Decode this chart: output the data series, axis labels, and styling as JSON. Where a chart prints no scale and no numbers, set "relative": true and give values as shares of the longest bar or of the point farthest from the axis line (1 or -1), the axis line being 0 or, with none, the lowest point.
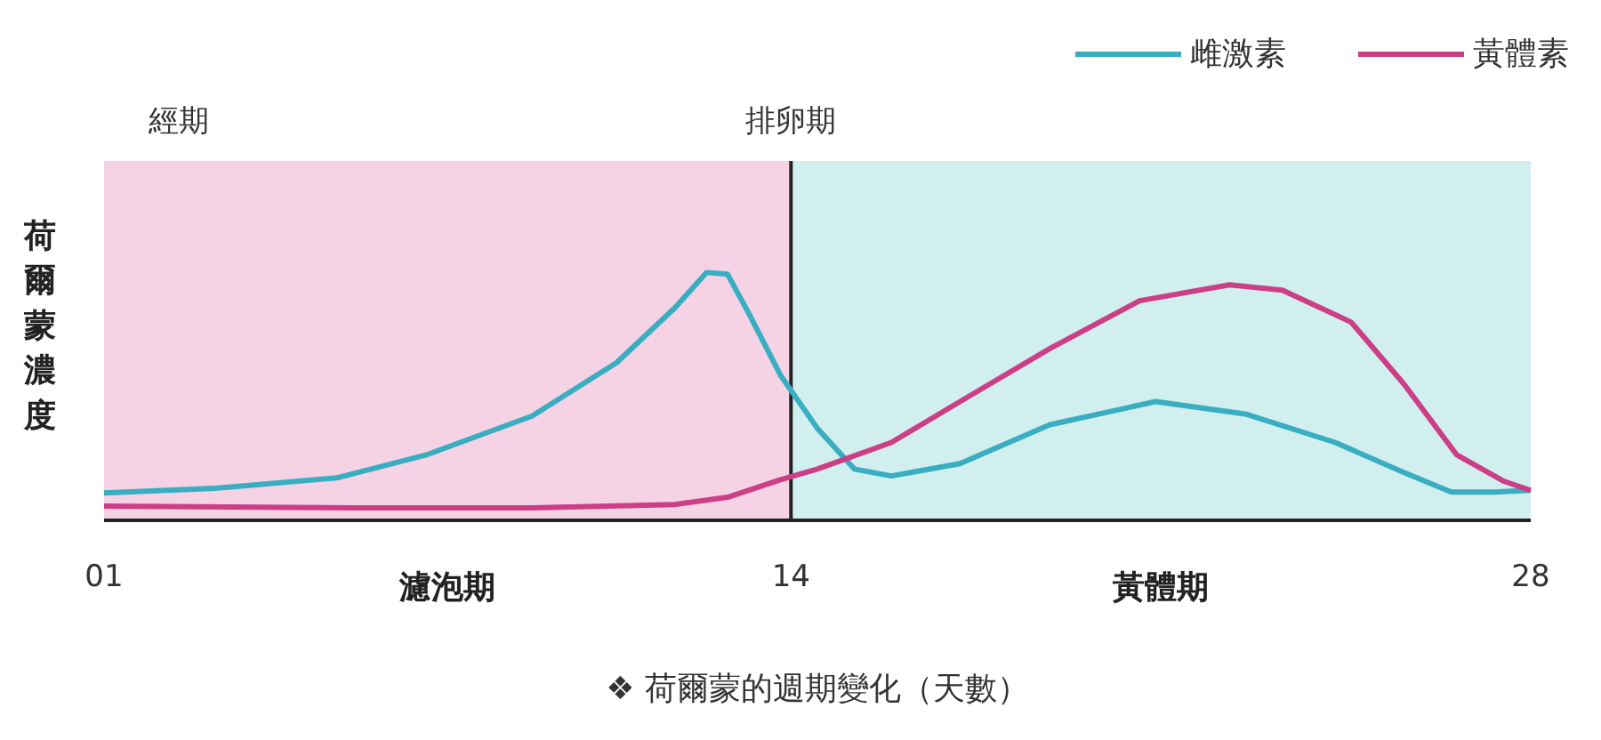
{
  "chart_data": {
    "type": "line",
    "relative": true,
    "ylabel": "荷爾蒙濃度",
    "xlim": [
      1,
      28
    ],
    "xticks": [
      {
        "value": 1,
        "label": "01"
      },
      14,
      28
    ],
    "series": [
      {
        "name": "雌激素",
        "color": "#38aec0",
        "x": [
          1,
          3.1,
          5.4,
          7.1,
          9.1,
          10.7,
          11.8,
          12.4,
          12.8,
          13.2,
          13.8,
          14.5,
          15.2,
          15.9,
          17.2,
          18.9,
          20.9,
          22.6,
          24.3,
          25.6,
          26.5,
          27.3,
          28
        ],
        "values": [
          0.11,
          0.129,
          0.171,
          0.264,
          0.421,
          0.636,
          0.857,
          1,
          0.993,
          0.836,
          0.586,
          0.371,
          0.207,
          0.179,
          0.229,
          0.386,
          0.479,
          0.429,
          0.314,
          0.193,
          0.114,
          0.114,
          0.121
        ]
      },
      {
        "name": "黃體素",
        "color": "#cc3f86",
        "x": [
          1,
          5.8,
          9.1,
          11.8,
          12.8,
          13.8,
          14.5,
          15.9,
          17.2,
          18.9,
          20.6,
          22.3,
          23.3,
          24.6,
          25.6,
          26.6,
          27.5,
          28
        ],
        "values": [
          0.057,
          0.05,
          0.05,
          0.064,
          0.093,
          0.164,
          0.207,
          0.314,
          0.479,
          0.693,
          0.886,
          0.95,
          0.929,
          0.8,
          0.55,
          0.264,
          0.157,
          0.121
        ]
      }
    ],
    "bands": [
      {
        "axis": "x",
        "from": 1,
        "to": 14,
        "label": "濾泡期",
        "color": "#f5d3e5"
      },
      {
        "axis": "x",
        "from": 14,
        "to": 28,
        "label": "黃體期",
        "color": "#d2eff0"
      }
    ],
    "ref_lines": [
      {
        "axis": "x",
        "value": 14,
        "label": "排卵期",
        "color": "#222222"
      }
    ],
    "legend": "top right",
    "annotations": [
      "經期",
      "❖ 荷爾蒙的週期變化（天數）"
    ]
  }
}
